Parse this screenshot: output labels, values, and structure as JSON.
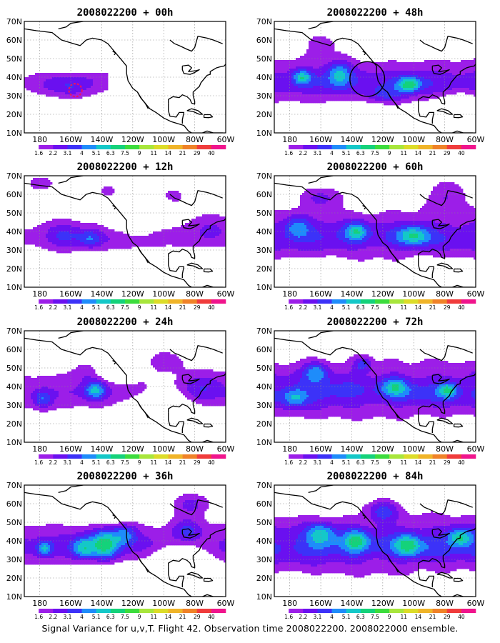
{
  "figure": {
    "caption": "Signal Variance for u,v,T. Flight 42. Observation time 2008022200. 2008022000 ensemble."
  },
  "map": {
    "lon_labels": [
      "180",
      "160W",
      "140W",
      "120W",
      "100W",
      "80W",
      "60W"
    ],
    "lat_labels": [
      "10N",
      "20N",
      "30N",
      "40N",
      "50N",
      "60N",
      "70N"
    ],
    "lon_range": [
      -190,
      -60
    ],
    "lat_range": [
      10,
      70
    ],
    "gridlines": "dotted"
  },
  "colorbar": {
    "levels": [
      "1.6",
      "2.2",
      "3.1",
      "4",
      "5.1",
      "6.3",
      "7.5",
      "9",
      "11",
      "14",
      "21",
      "29",
      "40"
    ],
    "colors": [
      "#ffffff",
      "#9c1ee8",
      "#6a10f0",
      "#3c32f8",
      "#1e8cfa",
      "#14c8c8",
      "#14d27a",
      "#3cdc3c",
      "#a8e63c",
      "#dcdc28",
      "#f0b428",
      "#f08228",
      "#f03c3c",
      "#f0148c"
    ]
  },
  "panels": [
    {
      "title": "2008022200 + 00h",
      "level": 0.8,
      "jet": 0.0,
      "spread": 0.1,
      "box_n": 42,
      "box_s": 22,
      "box_e": -136,
      "blobs": [
        [
          -170,
          36,
          16,
          6,
          1.6
        ],
        [
          -158,
          34,
          10,
          6,
          1.2
        ],
        [
          -145,
          38,
          12,
          7,
          0.9
        ]
      ],
      "markers": [
        {
          "type": "dashed-circle",
          "lon": -157,
          "lat": 33,
          "radius_deg": 3,
          "color": "#e8106a"
        }
      ]
    },
    {
      "title": "2008022200 + 48h",
      "level": 2.2,
      "jet": 0.9,
      "spread": 0.5,
      "blobs": [
        [
          -172,
          40,
          6,
          4,
          3.6
        ],
        [
          -148,
          42,
          8,
          7,
          3.0
        ],
        [
          -103,
          36,
          7,
          4,
          3.8
        ],
        [
          -160,
          58,
          14,
          8,
          1.2
        ],
        [
          -118,
          30,
          12,
          5,
          2.0
        ]
      ],
      "holes": [
        [
          -128,
          18,
          22,
          6
        ],
        [
          -70,
          22,
          12,
          8
        ]
      ],
      "markers": [
        {
          "type": "circle",
          "lon": -130,
          "lat": 39,
          "radius_deg": 8,
          "color": "#000000"
        }
      ]
    },
    {
      "title": "2008022200 + 12h",
      "level": 1.0,
      "jet": 0.4,
      "spread": 0.3,
      "blobs": [
        [
          -165,
          38,
          12,
          7,
          2.0
        ],
        [
          -147,
          36,
          8,
          5,
          2.6
        ],
        [
          -180,
          66,
          12,
          6,
          1.3
        ],
        [
          -95,
          60,
          18,
          8,
          1.1
        ],
        [
          -135,
          62,
          10,
          6,
          1.2
        ],
        [
          -70,
          42,
          12,
          8,
          1.4
        ],
        [
          -128,
          36,
          10,
          6,
          1.0
        ]
      ],
      "holes": [
        [
          -120,
          48,
          12,
          8
        ],
        [
          -80,
          20,
          20,
          6
        ]
      ],
      "markers": []
    },
    {
      "title": "2008022200 + 60h",
      "level": 2.4,
      "jet": 0.8,
      "spread": 0.8,
      "blobs": [
        [
          -137,
          40,
          7,
          5,
          3.4
        ],
        [
          -100,
          38,
          10,
          5,
          3.2
        ],
        [
          -175,
          42,
          8,
          6,
          2.6
        ],
        [
          -160,
          58,
          12,
          6,
          2.2
        ],
        [
          -78,
          60,
          12,
          8,
          2.0
        ]
      ],
      "holes": [
        [
          -160,
          18,
          18,
          6
        ],
        [
          -90,
          20,
          12,
          4
        ]
      ],
      "markers": []
    },
    {
      "title": "2008022200 + 24h",
      "level": 1.5,
      "jet": 0.6,
      "spread": 0.4,
      "blobs": [
        [
          -144,
          38,
          7,
          5,
          3.6
        ],
        [
          -178,
          33,
          6,
          5,
          2.6
        ],
        [
          -150,
          50,
          10,
          6,
          1.8
        ],
        [
          -100,
          54,
          12,
          6,
          1.6
        ],
        [
          -75,
          40,
          12,
          8,
          1.6
        ]
      ],
      "holes": [
        [
          -130,
          52,
          14,
          8
        ],
        [
          -100,
          30,
          16,
          10
        ],
        [
          -165,
          58,
          14,
          6
        ],
        [
          -95,
          20,
          30,
          6
        ]
      ],
      "markers": []
    },
    {
      "title": "2008022200 + 72h",
      "level": 2.6,
      "jet": 0.9,
      "spread": 1.0,
      "blobs": [
        [
          -163,
          48,
          8,
          6,
          3.0
        ],
        [
          -133,
          52,
          6,
          4,
          2.8
        ],
        [
          -112,
          40,
          8,
          5,
          3.0
        ],
        [
          -78,
          38,
          6,
          4,
          3.6
        ],
        [
          -177,
          34,
          8,
          5,
          2.6
        ]
      ],
      "holes": [
        [
          -125,
          15,
          30,
          4
        ]
      ],
      "markers": []
    },
    {
      "title": "2008022200 + 36h",
      "level": 2.0,
      "jet": 0.8,
      "spread": 0.5,
      "blobs": [
        [
          -138,
          38,
          9,
          8,
          4.3
        ],
        [
          -152,
          36,
          7,
          6,
          3.0
        ],
        [
          -177,
          36,
          5,
          4,
          3.2
        ],
        [
          -125,
          44,
          8,
          6,
          2.8
        ],
        [
          -85,
          46,
          10,
          6,
          2.2
        ],
        [
          -82,
          60,
          12,
          6,
          2.4
        ]
      ],
      "holes": [
        [
          -133,
          60,
          14,
          8
        ],
        [
          -90,
          32,
          18,
          8
        ],
        [
          -140,
          20,
          20,
          6
        ],
        [
          -80,
          18,
          18,
          6
        ]
      ],
      "markers": []
    },
    {
      "title": "2008022200 + 84h",
      "level": 2.8,
      "jet": 1.0,
      "spread": 1.0,
      "blobs": [
        [
          -160,
          44,
          9,
          6,
          3.2
        ],
        [
          -137,
          40,
          8,
          6,
          3.4
        ],
        [
          -104,
          38,
          8,
          6,
          3.2
        ],
        [
          -70,
          42,
          8,
          5,
          3.8
        ],
        [
          -120,
          56,
          10,
          6,
          2.8
        ]
      ],
      "holes": [
        [
          -100,
          14,
          24,
          4
        ]
      ],
      "markers": []
    }
  ]
}
